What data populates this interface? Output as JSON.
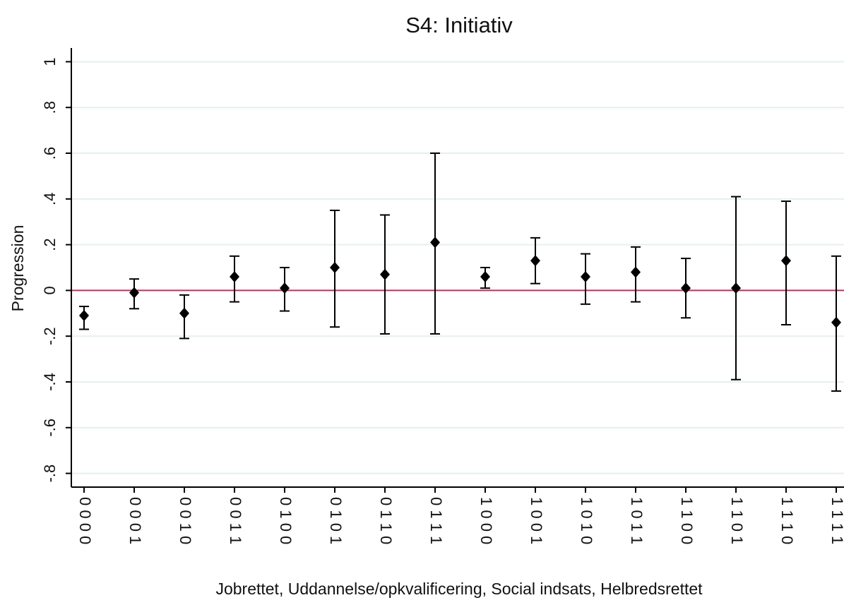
{
  "chart_data": {
    "type": "errorbar",
    "title": "S4: Initiativ",
    "x_label": "Jobrettet, Uddannelse/opkvalificering, Social indsats, Helbredsrettet",
    "y_label": "Progression",
    "categories": [
      "0 0 0 0",
      "0 0 0 1",
      "0 0 1 0",
      "0 0 1 1",
      "0 1 0 0",
      "0 1 0 1",
      "0 1 1 0",
      "0 1 1 1",
      "1 0 0 0",
      "1 0 0 1",
      "1 0 1 0",
      "1 0 1 1",
      "1 1 0 0",
      "1 1 0 1",
      "1 1 1 0",
      "1 1 1 1"
    ],
    "values": [
      -0.11,
      -0.01,
      -0.1,
      0.06,
      0.01,
      0.1,
      0.07,
      0.21,
      0.06,
      0.13,
      0.06,
      0.08,
      0.01,
      0.01,
      0.13,
      -0.14
    ],
    "lower": [
      -0.17,
      -0.08,
      -0.21,
      -0.05,
      -0.09,
      -0.16,
      -0.19,
      -0.19,
      0.01,
      0.03,
      -0.06,
      -0.05,
      -0.12,
      -0.39,
      -0.15,
      -0.44
    ],
    "upper": [
      -0.07,
      0.05,
      -0.02,
      0.15,
      0.1,
      0.35,
      0.33,
      0.6,
      0.1,
      0.23,
      0.16,
      0.19,
      0.14,
      0.41,
      0.39,
      0.15
    ],
    "color": "#000000",
    "reference_line": 0,
    "reference_color": "#c0325e",
    "ylim": [
      -0.86,
      1.06
    ],
    "yticks": [
      {
        "value": -0.8,
        "label": "-.8"
      },
      {
        "value": -0.6,
        "label": "-.6"
      },
      {
        "value": -0.4,
        "label": "-.4"
      },
      {
        "value": -0.2,
        "label": "-.2"
      },
      0,
      {
        "value": 0.2,
        "label": ".2"
      },
      {
        "value": 0.4,
        "label": ".4"
      },
      {
        "value": 0.6,
        "label": ".6"
      },
      {
        "value": 0.8,
        "label": ".8"
      },
      1
    ],
    "grid": true
  }
}
